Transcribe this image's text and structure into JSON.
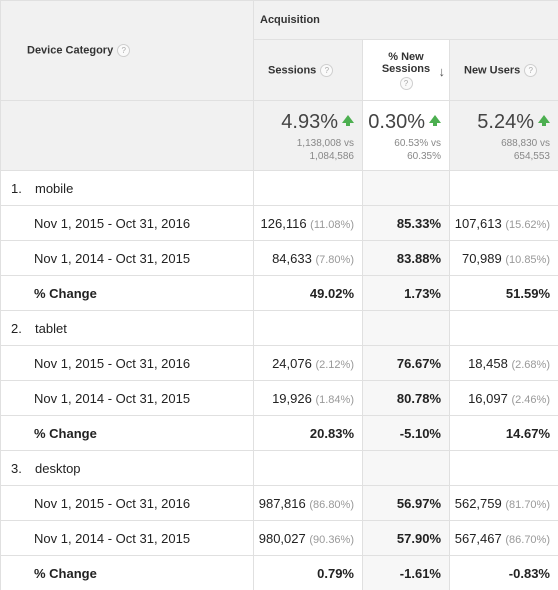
{
  "header": {
    "device_category": "Device Category",
    "acquisition": "Acquisition",
    "sessions": "Sessions",
    "pct_new_sessions_line1": "% New",
    "pct_new_sessions_line2": "Sessions",
    "new_users": "New Users",
    "help_glyph": "?",
    "sort_glyph": "↓"
  },
  "totals": {
    "sessions": {
      "value": "4.93%",
      "line1": "1,138,008 vs",
      "line2": "1,084,586"
    },
    "pct_new_sessions": {
      "value": "0.30%",
      "line1": "60.53% vs",
      "line2": "60.35%"
    },
    "new_users": {
      "value": "5.24%",
      "line1": "688,830 vs",
      "line2": "654,553"
    }
  },
  "groups": [
    {
      "index": "1.",
      "name": "mobile",
      "rows": [
        {
          "label": "Nov 1, 2015 - Oct 31, 2016",
          "sessions": "126,116",
          "sessions_pct": "(11.08%)",
          "pct_new": "85.33%",
          "new_users": "107,613",
          "new_users_pct": "(15.62%)"
        },
        {
          "label": "Nov 1, 2014 - Oct 31, 2015",
          "sessions": "84,633",
          "sessions_pct": "(7.80%)",
          "pct_new": "83.88%",
          "new_users": "70,989",
          "new_users_pct": "(10.85%)"
        }
      ],
      "change": {
        "label": "% Change",
        "sessions": "49.02%",
        "pct_new": "1.73%",
        "new_users": "51.59%"
      }
    },
    {
      "index": "2.",
      "name": "tablet",
      "rows": [
        {
          "label": "Nov 1, 2015 - Oct 31, 2016",
          "sessions": "24,076",
          "sessions_pct": "(2.12%)",
          "pct_new": "76.67%",
          "new_users": "18,458",
          "new_users_pct": "(2.68%)"
        },
        {
          "label": "Nov 1, 2014 - Oct 31, 2015",
          "sessions": "19,926",
          "sessions_pct": "(1.84%)",
          "pct_new": "80.78%",
          "new_users": "16,097",
          "new_users_pct": "(2.46%)"
        }
      ],
      "change": {
        "label": "% Change",
        "sessions": "20.83%",
        "pct_new": "-5.10%",
        "new_users": "14.67%"
      }
    },
    {
      "index": "3.",
      "name": "desktop",
      "rows": [
        {
          "label": "Nov 1, 2015 - Oct 31, 2016",
          "sessions": "987,816",
          "sessions_pct": "(86.80%)",
          "pct_new": "56.97%",
          "new_users": "562,759",
          "new_users_pct": "(81.70%)"
        },
        {
          "label": "Nov 1, 2014 - Oct 31, 2015",
          "sessions": "980,027",
          "sessions_pct": "(90.36%)",
          "pct_new": "57.90%",
          "new_users": "567,467",
          "new_users_pct": "(86.70%)"
        }
      ],
      "change": {
        "label": "% Change",
        "sessions": "0.79%",
        "pct_new": "-1.61%",
        "new_users": "-0.83%"
      }
    }
  ]
}
